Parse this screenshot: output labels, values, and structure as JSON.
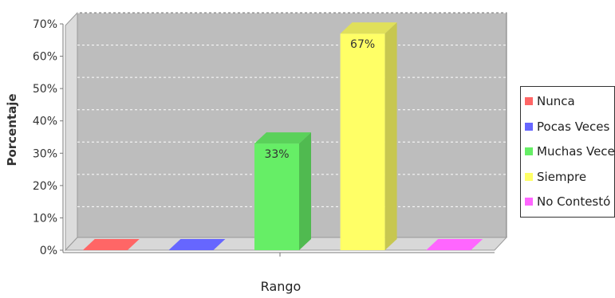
{
  "chart_data": {
    "type": "bar",
    "categories": [
      "Nunca",
      "Pocas Veces",
      "Muchas Veces",
      "Siempre",
      "No Contestó"
    ],
    "values": [
      0,
      0,
      33,
      67,
      0
    ],
    "value_labels": [
      "",
      "",
      "33%",
      "67%",
      ""
    ],
    "colors": [
      "#ff6666",
      "#6666ff",
      "#66ee66",
      "#ffff66",
      "#ff66ff"
    ],
    "ylabel": "Porcentaje",
    "xlabel": "Rango",
    "ylim": [
      0,
      70
    ],
    "yticks": [
      "0%",
      "10%",
      "20%",
      "30%",
      "40%",
      "50%",
      "60%",
      "70%"
    ],
    "grid": true,
    "style": "3d",
    "legend_position": "right"
  }
}
